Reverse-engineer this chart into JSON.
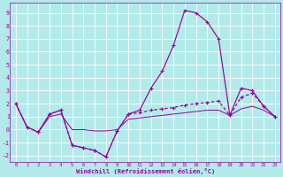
{
  "bg_color": "#b2eaea",
  "line_color": "#990099",
  "grid_color": "#aadddd",
  "xlabel": "Windchill (Refroidissement éolien,°C)",
  "ylim": [
    -2.5,
    9.8
  ],
  "xlim": [
    -0.5,
    23.5
  ],
  "hours": [
    0,
    1,
    2,
    3,
    4,
    5,
    6,
    7,
    8,
    9,
    10,
    11,
    12,
    13,
    14,
    15,
    16,
    17,
    18,
    19,
    20,
    21,
    22,
    23
  ],
  "wc_main": [
    2.0,
    0.2,
    -0.2,
    1.2,
    1.5,
    -1.2,
    -1.4,
    -1.6,
    -2.1,
    -0.1,
    1.2,
    1.5,
    3.2,
    4.5,
    6.5,
    9.2,
    9.0,
    8.3,
    7.0,
    1.1,
    3.2,
    3.0,
    1.8,
    1.0
  ],
  "temp_line": [
    2.0,
    0.2,
    -0.2,
    1.2,
    1.5,
    -1.2,
    -1.4,
    -1.6,
    -2.1,
    -0.1,
    1.2,
    1.3,
    1.5,
    1.6,
    1.7,
    1.9,
    2.0,
    2.1,
    2.2,
    1.1,
    2.5,
    2.8,
    1.8,
    1.0
  ],
  "ref_line": [
    2.0,
    0.2,
    -0.2,
    1.0,
    1.2,
    -0.0,
    0.0,
    -0.1,
    -0.1,
    -0.0,
    0.8,
    0.9,
    1.0,
    1.1,
    1.2,
    1.3,
    1.4,
    1.5,
    1.5,
    1.1,
    1.6,
    1.8,
    1.5,
    1.0
  ],
  "yticks": [
    -2,
    -1,
    0,
    1,
    2,
    3,
    4,
    5,
    6,
    7,
    8,
    9
  ],
  "xticks": [
    0,
    1,
    2,
    3,
    4,
    5,
    6,
    7,
    8,
    9,
    10,
    11,
    12,
    13,
    14,
    15,
    16,
    17,
    18,
    19,
    20,
    21,
    22,
    23
  ]
}
